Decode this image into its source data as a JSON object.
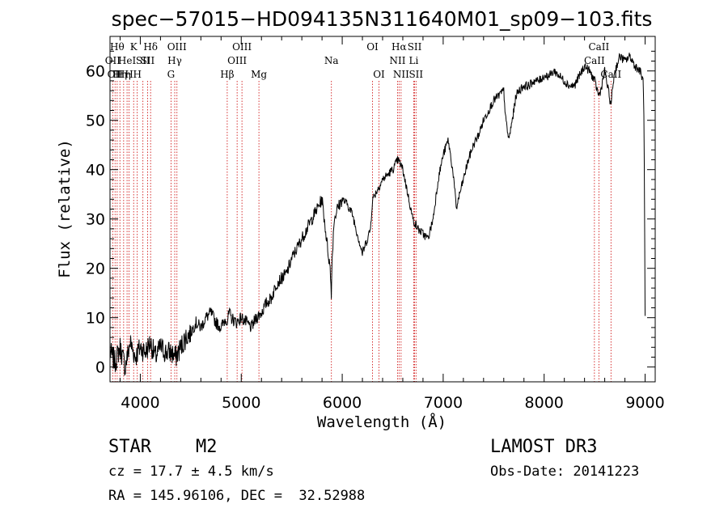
{
  "chart_data": {
    "type": "line",
    "title": "spec−57015−HD094135N311640M01_sp09−103.fits",
    "xlabel": "Wavelength (Å)",
    "ylabel": "Flux (relative)",
    "xlim": [
      3700,
      9100
    ],
    "ylim": [
      -3,
      67
    ],
    "x_ticks": [
      4000,
      5000,
      6000,
      7000,
      8000,
      9000
    ],
    "y_ticks": [
      0,
      10,
      20,
      30,
      40,
      50,
      60
    ],
    "line_color": "#000000",
    "marker_color": "#cc0000",
    "series": [
      {
        "x": [
          3700,
          3750,
          3800,
          3850,
          3900,
          3950,
          4000,
          4050,
          4100,
          4150,
          4200,
          4250,
          4300,
          4350,
          4400,
          4450,
          4500,
          4550,
          4600,
          4650,
          4700,
          4750,
          4800,
          4850,
          4860,
          4880,
          4900,
          4950,
          5000,
          5050,
          5100,
          5150,
          5200,
          5250,
          5300,
          5350,
          5400,
          5450,
          5500,
          5550,
          5600,
          5650,
          5700,
          5750,
          5800,
          5850,
          5880,
          5892,
          5900,
          5920,
          5950,
          6000,
          6050,
          6100,
          6150,
          6200,
          6250,
          6280,
          6300,
          6350,
          6400,
          6450,
          6500,
          6550,
          6580,
          6600,
          6650,
          6700,
          6750,
          6800,
          6850,
          6900,
          6950,
          7000,
          7050,
          7100,
          7130,
          7150,
          7200,
          7250,
          7300,
          7350,
          7400,
          7450,
          7500,
          7550,
          7600,
          7620,
          7650,
          7700,
          7720,
          7750,
          7800,
          7850,
          7900,
          7950,
          8000,
          8050,
          8100,
          8150,
          8200,
          8250,
          8300,
          8350,
          8400,
          8450,
          8500,
          8542,
          8560,
          8600,
          8662,
          8680,
          8700,
          8750,
          8800,
          8850,
          8900,
          8950,
          8980,
          8990,
          9000
        ],
        "y": [
          3,
          1,
          4,
          0,
          5,
          2,
          4,
          3,
          5,
          2,
          4,
          3,
          3,
          2,
          4,
          6,
          7,
          9,
          8,
          10,
          11,
          9,
          8,
          10,
          9,
          11,
          10,
          9,
          10,
          9,
          8,
          10,
          11,
          13,
          14,
          17,
          18,
          19,
          22,
          24,
          26,
          28,
          30,
          32,
          34,
          25,
          20,
          15,
          22,
          30,
          32,
          34,
          33,
          31,
          27,
          23,
          26,
          28,
          34,
          36,
          38,
          39,
          40,
          42,
          41,
          40,
          35,
          30,
          28,
          27,
          26,
          30,
          38,
          43,
          46,
          39,
          32,
          34,
          38,
          42,
          45,
          47,
          50,
          52,
          54,
          55,
          56,
          50,
          46,
          52,
          55,
          56,
          57,
          57,
          58,
          58,
          59,
          59,
          60,
          59,
          58,
          57,
          57,
          59,
          61,
          60,
          58,
          55,
          56,
          60,
          53,
          57,
          60,
          63,
          62,
          63,
          61,
          60,
          58,
          50,
          10
        ]
      }
    ],
    "lines": [
      {
        "wl": 3727,
        "label": "OII",
        "row": 1
      },
      {
        "wl": 3750,
        "label": "OII",
        "row": 2
      },
      {
        "wl": 3771,
        "label": "Hθ",
        "row": 0
      },
      {
        "wl": 3798,
        "label": "Hη",
        "row": 2
      },
      {
        "wl": 3835,
        "label": "Hη",
        "row": 2
      },
      {
        "wl": 3869,
        "label": "HeI",
        "row": 1
      },
      {
        "wl": 3889,
        "label": "H",
        "row": 2
      },
      {
        "wl": 3934,
        "label": "K",
        "row": 0
      },
      {
        "wl": 3970,
        "label": "H",
        "row": 2
      },
      {
        "wl": 4026,
        "label": "SII",
        "row": 1
      },
      {
        "wl": 4072,
        "label": "SII",
        "row": 1
      },
      {
        "wl": 4102,
        "label": "Hδ",
        "row": 0
      },
      {
        "wl": 4304,
        "label": "G",
        "row": 2
      },
      {
        "wl": 4341,
        "label": "Hγ",
        "row": 1
      },
      {
        "wl": 4363,
        "label": "OIII",
        "row": 0
      },
      {
        "wl": 4861,
        "label": "Hβ",
        "row": 2
      },
      {
        "wl": 4959,
        "label": "OIII",
        "row": 1
      },
      {
        "wl": 5007,
        "label": "OIII",
        "row": 0
      },
      {
        "wl": 5175,
        "label": "Mg",
        "row": 2
      },
      {
        "wl": 5893,
        "label": "Na",
        "row": 1
      },
      {
        "wl": 6300,
        "label": "OI",
        "row": 0
      },
      {
        "wl": 6364,
        "label": "OI",
        "row": 2
      },
      {
        "wl": 6548,
        "label": "NII",
        "row": 1
      },
      {
        "wl": 6563,
        "label": "Hα",
        "row": 0
      },
      {
        "wl": 6583,
        "label": "NII",
        "row": 2
      },
      {
        "wl": 6708,
        "label": "Li",
        "row": 1
      },
      {
        "wl": 6717,
        "label": "SII",
        "row": 0
      },
      {
        "wl": 6731,
        "label": "SII",
        "row": 2
      },
      {
        "wl": 8498,
        "label": "CaII",
        "row": 1
      },
      {
        "wl": 8542,
        "label": "CaII",
        "row": 0
      },
      {
        "wl": 8662,
        "label": "CaII",
        "row": 2
      }
    ]
  },
  "info": {
    "class_label": "STAR",
    "subclass": "M2",
    "survey": "LAMOST DR3",
    "cz": "cz = 17.7 ± 4.5 km/s",
    "obs_date": "Obs-Date: 20141223",
    "radec": "RA = 145.96106, DEC =  32.52988"
  }
}
